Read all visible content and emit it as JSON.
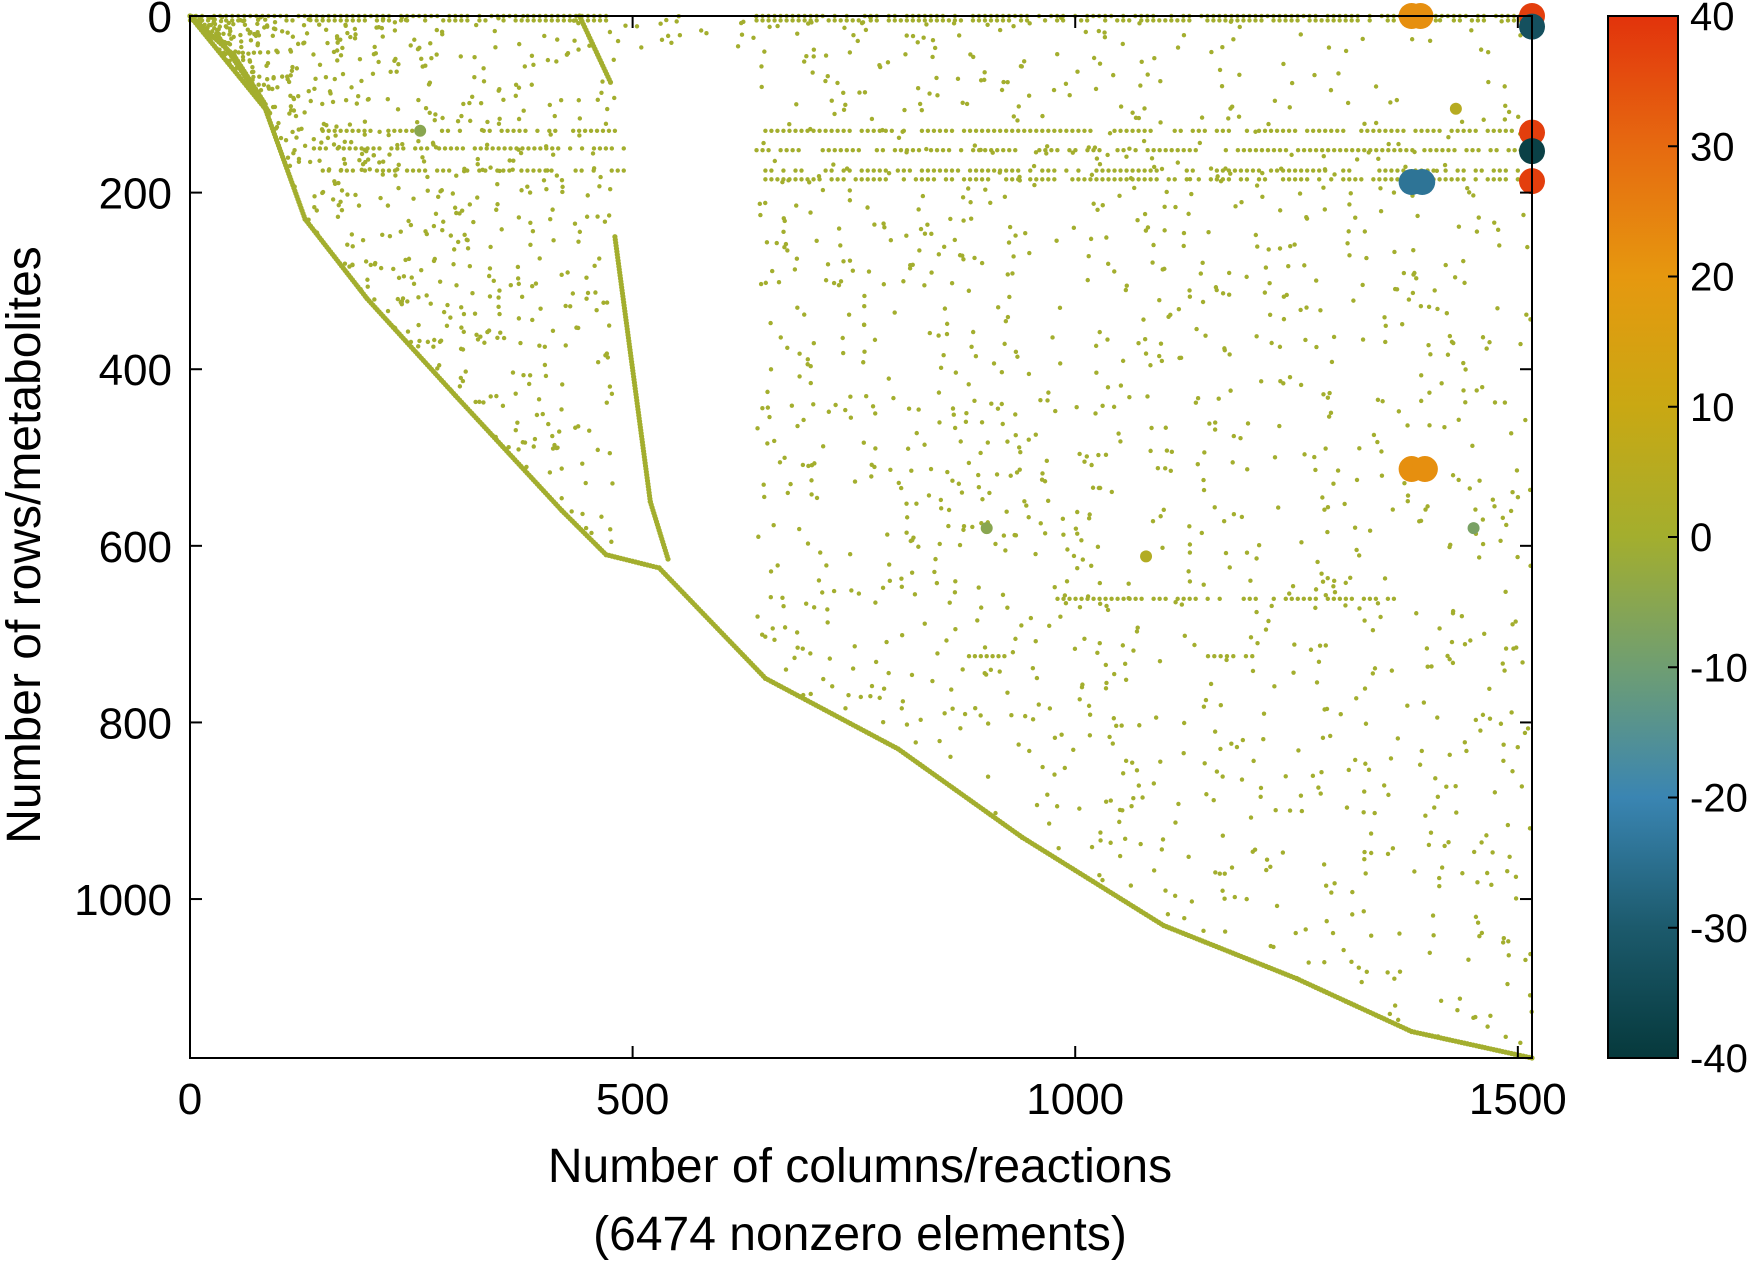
{
  "chart_data": {
    "type": "scatter",
    "subtype": "sparsity-pattern",
    "xlabel": "Number of columns/reactions",
    "xlabel_note": "(6474 nonzero elements)",
    "ylabel": "Number of rows/metabolites",
    "xlim": [
      0,
      1516
    ],
    "ylim": [
      1180,
      0
    ],
    "y_axis_inverted": true,
    "x_ticks": [
      0,
      500,
      1000,
      1500
    ],
    "y_ticks": [
      0,
      200,
      400,
      600,
      800,
      1000
    ],
    "colorbar": {
      "range": [
        -40,
        40
      ],
      "ticks": [
        40,
        30,
        20,
        10,
        0,
        -10,
        -20,
        -30,
        -40
      ],
      "stops": [
        {
          "value": 40,
          "color": "#e2330c"
        },
        {
          "value": 30,
          "color": "#e66a10"
        },
        {
          "value": 20,
          "color": "#e6980f"
        },
        {
          "value": 10,
          "color": "#c9a813"
        },
        {
          "value": 0,
          "color": "#a3ae2e"
        },
        {
          "value": -10,
          "color": "#6f9e72"
        },
        {
          "value": -20,
          "color": "#3a85b2"
        },
        {
          "value": -30,
          "color": "#1c5a6c"
        },
        {
          "value": -40,
          "color": "#06393c"
        }
      ]
    },
    "grid": false,
    "highlighted_points": [
      {
        "x": 1380,
        "y": 0,
        "value": 22
      },
      {
        "x": 1390,
        "y": 0,
        "value": 22
      },
      {
        "x": 1516,
        "y": 0,
        "value": 38
      },
      {
        "x": 1516,
        "y": 12,
        "value": -33
      },
      {
        "x": 1516,
        "y": 132,
        "value": 38
      },
      {
        "x": 1516,
        "y": 153,
        "value": -38
      },
      {
        "x": 1516,
        "y": 187,
        "value": 38
      },
      {
        "x": 1380,
        "y": 188,
        "value": -24
      },
      {
        "x": 1392,
        "y": 188,
        "value": -24
      },
      {
        "x": 1380,
        "y": 513,
        "value": 22
      },
      {
        "x": 1395,
        "y": 513,
        "value": 22
      },
      {
        "x": 1450,
        "y": 580,
        "value": -8
      },
      {
        "x": 1080,
        "y": 612,
        "value": 4
      },
      {
        "x": 900,
        "y": 580,
        "value": -5
      },
      {
        "x": 260,
        "y": 130,
        "value": -5
      },
      {
        "x": 1430,
        "y": 105,
        "value": 5
      }
    ],
    "structure_features": [
      {
        "kind": "diagonal",
        "points": [
          [
            0,
            0
          ],
          [
            85,
            105
          ],
          [
            130,
            230
          ],
          [
            200,
            320
          ],
          [
            300,
            430
          ],
          [
            420,
            560
          ],
          [
            470,
            610
          ],
          [
            530,
            625
          ],
          [
            650,
            750
          ],
          [
            800,
            830
          ],
          [
            940,
            930
          ],
          [
            1100,
            1030
          ],
          [
            1250,
            1090
          ],
          [
            1380,
            1150
          ],
          [
            1516,
            1180
          ]
        ],
        "value": 0
      },
      {
        "kind": "diagonal",
        "points": [
          [
            0,
            0
          ],
          [
            50,
            45
          ],
          [
            85,
            100
          ]
        ],
        "value": 0
      },
      {
        "kind": "diagonal",
        "points": [
          [
            30,
            20
          ],
          [
            90,
            110
          ]
        ],
        "value": 0
      },
      {
        "kind": "diagonal",
        "points": [
          [
            440,
            0
          ],
          [
            475,
            75
          ]
        ],
        "value": 0
      },
      {
        "kind": "diagonal",
        "points": [
          [
            480,
            250
          ],
          [
            520,
            550
          ],
          [
            540,
            615
          ]
        ],
        "value": 0
      },
      {
        "kind": "row",
        "y": 0,
        "x_range": [
          0,
          470
        ],
        "value": 0
      },
      {
        "kind": "row",
        "y": 0,
        "x_range": [
          640,
          1516
        ],
        "value": 0
      },
      {
        "kind": "row",
        "y": 5,
        "x_range": [
          0,
          470
        ],
        "value": 0
      },
      {
        "kind": "row",
        "y": 5,
        "x_range": [
          640,
          1516
        ],
        "value": 0
      },
      {
        "kind": "row",
        "y": 130,
        "x_range": [
          150,
          480
        ],
        "value": 0
      },
      {
        "kind": "row",
        "y": 130,
        "x_range": [
          650,
          1500
        ],
        "value": 0
      },
      {
        "kind": "row",
        "y": 150,
        "x_range": [
          140,
          490
        ],
        "value": 0
      },
      {
        "kind": "row",
        "y": 152,
        "x_range": [
          640,
          1510
        ],
        "value": 0
      },
      {
        "kind": "row",
        "y": 175,
        "x_range": [
          150,
          490
        ],
        "value": 0
      },
      {
        "kind": "row",
        "y": 175,
        "x_range": [
          650,
          1500
        ],
        "value": 0
      },
      {
        "kind": "row",
        "y": 185,
        "x_range": [
          650,
          1500
        ],
        "value": 0
      },
      {
        "kind": "row",
        "y": 660,
        "x_range": [
          980,
          1360
        ],
        "value": 0
      },
      {
        "kind": "row",
        "y": 725,
        "x_range": [
          880,
          920
        ],
        "value": 0
      },
      {
        "kind": "row",
        "y": 725,
        "x_range": [
          1150,
          1200
        ],
        "value": 0
      }
    ]
  }
}
